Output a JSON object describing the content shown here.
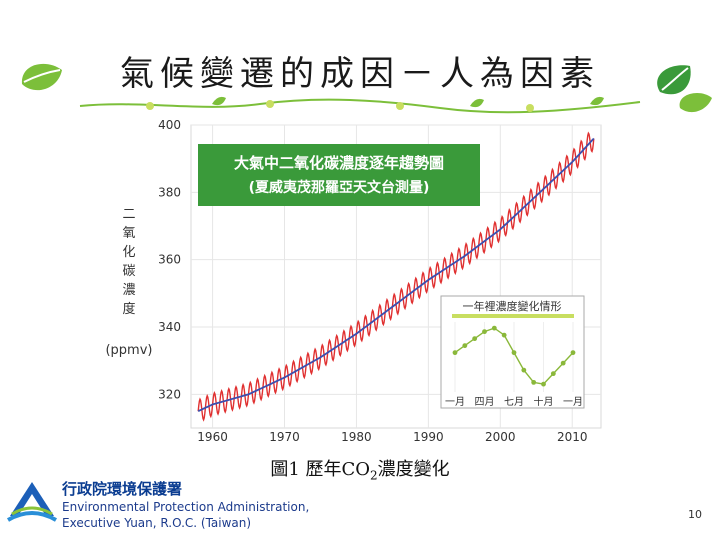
{
  "slide": {
    "title": "氣候變遷的成因－人為因素",
    "caption_prefix": "圖1 歷年CO",
    "caption_sub": "2",
    "caption_suffix": "濃度變化",
    "page_number": "10"
  },
  "agency": {
    "name_zh": "行政院環境保護署",
    "name_en_line1": "Environmental Protection Administration,",
    "name_en_line2": "Executive Yuan, R.O.C. (Taiwan)"
  },
  "colors": {
    "accent_green": "#3a9a3a",
    "leaf_green": "#7cbf3a",
    "monthly_red": "#e03030",
    "trend_blue": "#3a4fb0",
    "inset_green": "#8ab83a"
  },
  "chart_data": [
    {
      "type": "line",
      "title": "大氣中二氧化碳濃度逐年趨勢圖",
      "subtitle": "(夏威夷茂那羅亞天文台測量)",
      "ylabel_chars": [
        "二",
        "氧",
        "化",
        "碳",
        "濃",
        "度"
      ],
      "ylabel_unit": "(ppmv)",
      "xlim": [
        1957,
        2014
      ],
      "ylim": [
        310,
        400
      ],
      "xticks": [
        1960,
        1970,
        1980,
        1990,
        2000,
        2010
      ],
      "yticks": [
        320,
        340,
        360,
        380,
        400
      ],
      "grid": true,
      "series": [
        {
          "name": "monthly",
          "color": "#e03030",
          "seasonal_amplitude_ppmv": 3.3,
          "x": [
            1958,
            1960,
            1965,
            1970,
            1975,
            1980,
            1985,
            1990,
            1995,
            2000,
            2005,
            2010,
            2013
          ],
          "y": [
            315,
            317,
            320,
            325,
            331,
            338,
            346,
            354,
            361,
            369,
            379,
            389,
            396
          ]
        },
        {
          "name": "annual trend",
          "color": "#3a4fb0",
          "x": [
            1958,
            1960,
            1965,
            1970,
            1975,
            1980,
            1985,
            1990,
            1995,
            2000,
            2005,
            2010,
            2013
          ],
          "y": [
            315,
            317,
            320,
            325,
            331,
            338,
            346,
            354,
            361,
            369,
            379,
            389,
            396
          ]
        }
      ]
    },
    {
      "type": "line",
      "title": "一年裡濃度變化情形",
      "xtick_labels": [
        "一月",
        "四月",
        "七月",
        "十月",
        "一月"
      ],
      "series": [
        {
          "name": "seasonal cycle",
          "color": "#8ab83a",
          "x": [
            0,
            1,
            2,
            3,
            4,
            5,
            6,
            7,
            8,
            9,
            10,
            11,
            12
          ],
          "y": [
            0.0,
            0.8,
            1.6,
            2.4,
            2.8,
            2.0,
            0.0,
            -2.0,
            -3.4,
            -3.6,
            -2.4,
            -1.2,
            0.0
          ]
        }
      ]
    }
  ]
}
